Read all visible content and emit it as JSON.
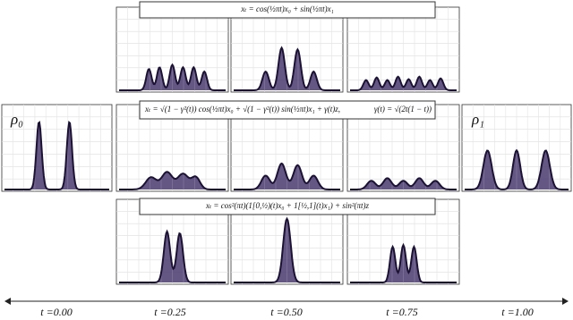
{
  "formulas": {
    "top": "xₜ = cos(½πt)x₀ + sin(½πt)x₁",
    "middle": "xₜ = √(1 − γ²(t)) cos(½πt)x₀ + √(1 − γ²(t)) sin(½πt)x₁ + γ(t)z,",
    "middle_gamma": "γ(t) = √(2t(1 − t))",
    "bottom": "xₜ = cos²(πt)(1[0,½)(t)x₀ + 1[½,1](t)x₁) + sin²(πt)z"
  },
  "endpoints": {
    "start": "ρ₀",
    "end": "ρ₁"
  },
  "time_labels": [
    "t =0.00",
    "t =0.25",
    "t =0.50",
    "t =0.75",
    "t =1.00"
  ]
}
